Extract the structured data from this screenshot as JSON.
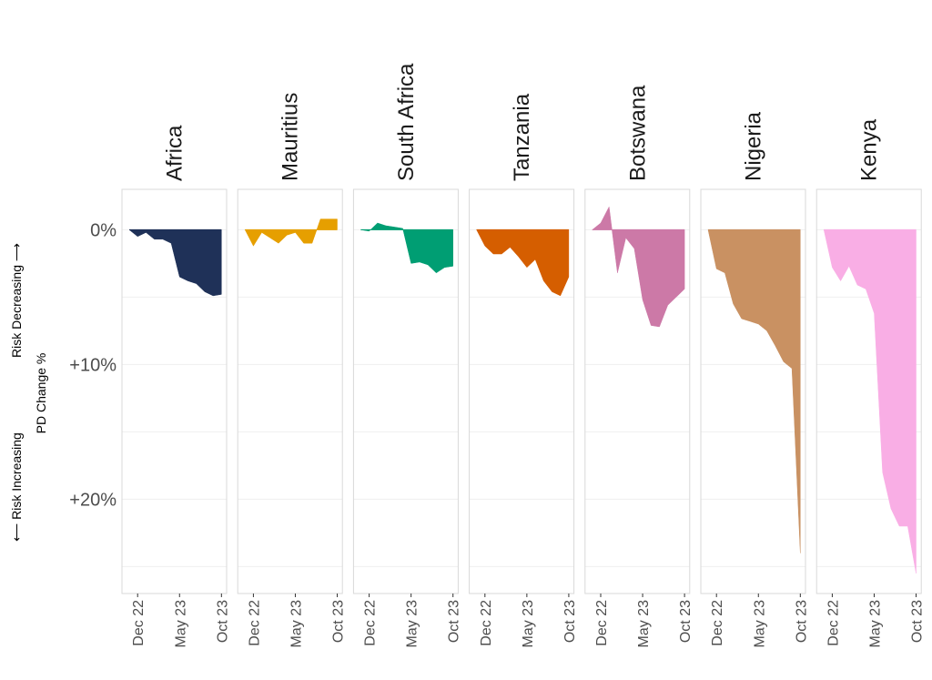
{
  "chart_data": {
    "type": "area",
    "ylabel": "PD Change %",
    "annotation_top": "Risk Decreasing ⟶",
    "annotation_bottom": "⟵ Risk Increasing",
    "y_ticks": [
      {
        "value": 0,
        "label": "0%"
      },
      {
        "value": 10,
        "label": "+10%"
      },
      {
        "value": 20,
        "label": "+20%"
      }
    ],
    "ylim": [
      -3,
      27
    ],
    "y_reversed": true,
    "x_ticks": [
      {
        "month": 1,
        "label": "Dec 22"
      },
      {
        "month": 6,
        "label": "May 23"
      },
      {
        "month": 11,
        "label": "Oct 23"
      }
    ],
    "xlim": [
      0.0,
      11.4
    ],
    "grid": true,
    "panels": [
      {
        "name": "Africa",
        "color": "#1f3158",
        "x": [
          0,
          1,
          2,
          3,
          4,
          5,
          6,
          7,
          8,
          9,
          10,
          11
        ],
        "y": [
          0,
          0.5,
          0.2,
          0.7,
          0.7,
          1.0,
          3.5,
          3.8,
          4.0,
          4.6,
          4.9,
          4.8
        ]
      },
      {
        "name": "Mauritius",
        "color": "#e69f00",
        "x": [
          0,
          1,
          2,
          3,
          4,
          5,
          6,
          7,
          8,
          9,
          10,
          11
        ],
        "y": [
          0,
          1.2,
          0.2,
          0.6,
          1.0,
          0.4,
          0.2,
          1.0,
          1.0,
          -0.8,
          -0.8,
          -0.8
        ]
      },
      {
        "name": "South Africa",
        "color": "#009e73",
        "x": [
          0,
          1,
          2,
          3,
          4,
          5,
          6,
          7,
          8,
          9,
          10,
          11
        ],
        "y": [
          0,
          0.1,
          -0.5,
          -0.3,
          -0.2,
          -0.1,
          2.5,
          2.4,
          2.6,
          3.2,
          2.8,
          2.7
        ]
      },
      {
        "name": "Tanzania",
        "color": "#d55e00",
        "x": [
          0,
          1,
          2,
          3,
          4,
          5,
          6,
          7,
          8,
          9,
          10,
          11
        ],
        "y": [
          0,
          1.2,
          1.8,
          1.8,
          1.3,
          2.0,
          2.8,
          2.2,
          3.8,
          4.6,
          4.9,
          3.5
        ]
      },
      {
        "name": "Botswana",
        "color": "#cc79a7",
        "x": [
          0,
          1,
          2,
          3,
          4,
          5,
          6,
          7,
          8,
          9,
          10,
          11
        ],
        "y": [
          0,
          -0.5,
          -1.7,
          3.2,
          0.6,
          1.4,
          5.2,
          7.1,
          7.2,
          5.6,
          5.0,
          4.4
        ]
      },
      {
        "name": "Nigeria",
        "color": "#c99162",
        "x": [
          0,
          1,
          2,
          3,
          4,
          5,
          6,
          7,
          8,
          9,
          10,
          11
        ],
        "y": [
          0,
          2.9,
          3.2,
          5.5,
          6.6,
          6.8,
          7.0,
          7.5,
          8.6,
          9.8,
          10.3,
          24.0
        ]
      },
      {
        "name": "Kenya",
        "color": "#f9aee5",
        "x": [
          0,
          1,
          2,
          3,
          4,
          5,
          6,
          7,
          8,
          9,
          10,
          11
        ],
        "y": [
          0,
          2.8,
          3.8,
          2.7,
          4.1,
          4.4,
          6.2,
          18.0,
          20.7,
          22.0,
          22.0,
          25.5
        ]
      }
    ]
  }
}
